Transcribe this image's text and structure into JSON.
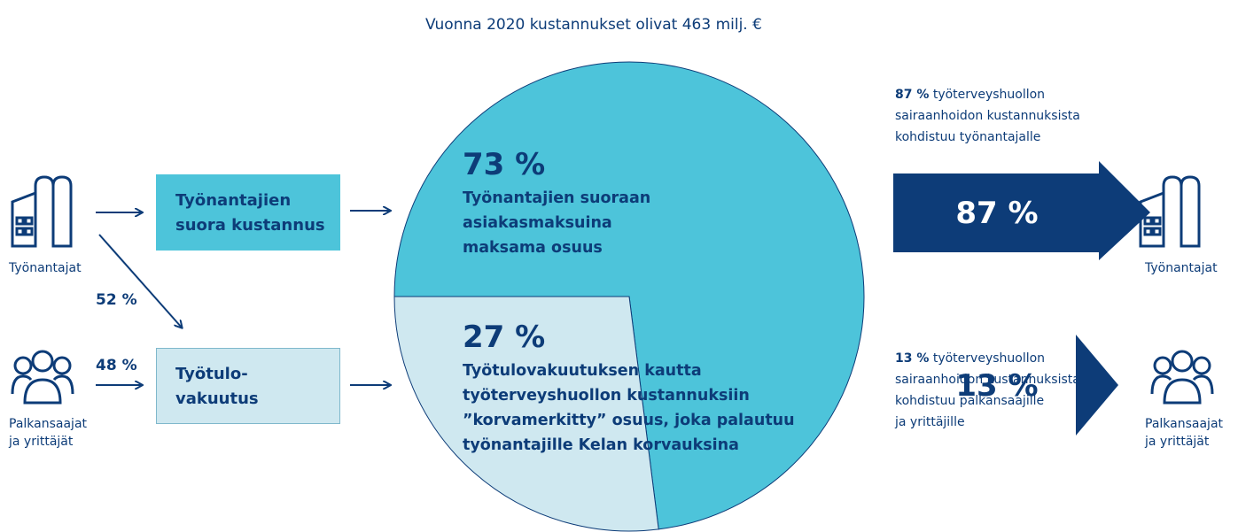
{
  "title": "Vuonna 2020 kustannukset olivat 463 milj. €",
  "left": {
    "employers": "Työnantajat",
    "employees": [
      "Palkansaajat",
      "ja yrittäjät"
    ],
    "share_employers": "52 %",
    "share_employees": "48 %"
  },
  "boxes": [
    {
      "lines": [
        "Työnantajien",
        "suora kustannus"
      ]
    },
    {
      "lines": [
        "Työtulo-",
        "vakuutus"
      ]
    }
  ],
  "pie": {
    "slices": [
      {
        "value": 73,
        "value_label": "73 %",
        "color": "#4dc4da",
        "lines": [
          "Työnantajien suoraan",
          "asiakasmaksuina",
          "maksama osuus"
        ]
      },
      {
        "value": 27,
        "value_label": "27 %",
        "color": "#cfe8f0",
        "lines": [
          "Työtulovakuutuksen kautta",
          "työterveyshuollon kustannuksiin",
          "”korvamerkitty” osuus, joka palautuu",
          "työnantajille Kelan korvauksina"
        ]
      }
    ]
  },
  "right": {
    "top_note": {
      "bold": "87 %",
      "lines": [
        " työterveyshuollon",
        "sairaanhoidon kustannuksista",
        "kohdistuu työnantajalle"
      ]
    },
    "top_arrow": "87 %",
    "top_target": "Työnantajat",
    "bottom_value": "13 %",
    "bottom_target": [
      "Palkansaajat",
      "ja yrittäjät"
    ],
    "bottom_note": {
      "bold": "13 %",
      "lines": [
        " työterveyshuollon",
        "sairaanhoidon kustannuksista",
        "kohdistuu palkansaajille",
        "ja yrittäjille"
      ]
    }
  }
}
